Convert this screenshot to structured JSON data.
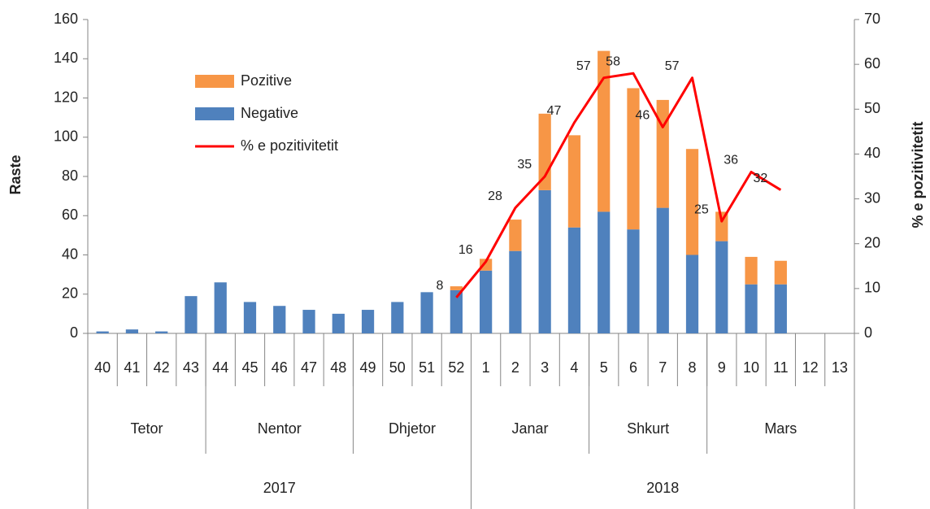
{
  "chart_data": {
    "type": "bar-line",
    "y_label": "Raste",
    "y2_label": "% e pozitivitetit",
    "categories": [
      "40",
      "41",
      "42",
      "43",
      "44",
      "45",
      "46",
      "47",
      "48",
      "49",
      "50",
      "51",
      "52",
      "1",
      "2",
      "3",
      "4",
      "5",
      "6",
      "7",
      "8",
      "9",
      "10",
      "11",
      "12",
      "13"
    ],
    "months": [
      {
        "label": "Tetor",
        "span": 4
      },
      {
        "label": "Nentor",
        "span": 5
      },
      {
        "label": "Dhjetor",
        "span": 4
      },
      {
        "label": "Janar",
        "span": 4
      },
      {
        "label": "Shkurt",
        "span": 4
      },
      {
        "label": "Mars",
        "span": 5
      }
    ],
    "years": [
      {
        "label": "2017",
        "span": 13
      },
      {
        "label": "2018",
        "span": 13
      }
    ],
    "series": [
      {
        "name": "Pozitive",
        "type": "bar",
        "color": "#f79646",
        "values": [
          0,
          0,
          0,
          0,
          0,
          0,
          0,
          0,
          0,
          0,
          0,
          0,
          2,
          6,
          16,
          39,
          47,
          82,
          72,
          55,
          54,
          15,
          14,
          12,
          null,
          null
        ]
      },
      {
        "name": "Negative",
        "type": "bar",
        "color": "#4f81bd",
        "values": [
          1,
          2,
          1,
          19,
          26,
          16,
          14,
          12,
          10,
          12,
          16,
          21,
          22,
          32,
          42,
          73,
          54,
          62,
          53,
          64,
          40,
          47,
          25,
          25,
          null,
          null
        ]
      },
      {
        "name": "% e pozitivitetit",
        "type": "line",
        "axis": "y2",
        "color": "#ff0000",
        "values": [
          null,
          null,
          null,
          null,
          null,
          null,
          null,
          null,
          null,
          null,
          null,
          null,
          8,
          16,
          28,
          35,
          47,
          57,
          58,
          46,
          57,
          25,
          36,
          32,
          null,
          null
        ]
      }
    ],
    "ylim": [
      0,
      160
    ],
    "yticks": [
      0,
      20,
      40,
      60,
      80,
      100,
      120,
      140,
      160
    ],
    "y2lim": [
      0,
      70
    ],
    "y2ticks": [
      0,
      10,
      20,
      30,
      40,
      50,
      60,
      70
    ],
    "legend": "upper left"
  }
}
